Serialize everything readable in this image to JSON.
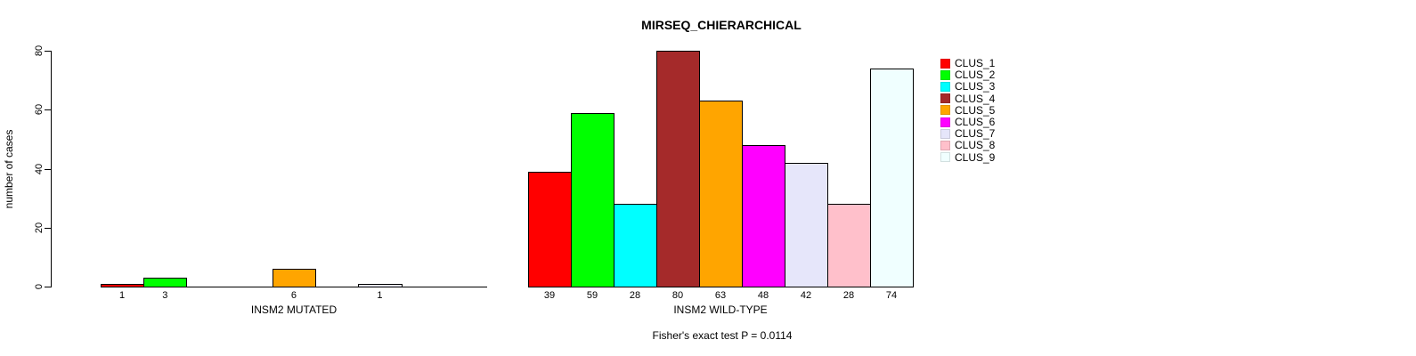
{
  "title": "MIRSEQ_CHIERARCHICAL",
  "chart_data": {
    "type": "bar",
    "title": "MIRSEQ_CHIERARCHICAL",
    "xlabel": "",
    "ylabel": "number of cases",
    "ylim": [
      0,
      80
    ],
    "yticks": [
      0,
      20,
      40,
      60,
      80
    ],
    "grid": false,
    "legend_position": "right",
    "categories": [
      "CLUS_1",
      "CLUS_2",
      "CLUS_3",
      "CLUS_4",
      "CLUS_5",
      "CLUS_6",
      "CLUS_7",
      "CLUS_8",
      "CLUS_9"
    ],
    "colors": [
      "#FF0000",
      "#00FF00",
      "#00FFFF",
      "#A52A2A",
      "#FFA500",
      "#FF00FF",
      "#E6E6FA",
      "#FFC0CB",
      "#F0FFFF"
    ],
    "series": [
      {
        "name": "INSM2 MUTATED",
        "values": [
          1,
          3,
          0,
          0,
          6,
          0,
          1,
          0,
          0
        ]
      },
      {
        "name": "INSM2 WILD-TYPE",
        "values": [
          39,
          59,
          28,
          80,
          63,
          48,
          42,
          28,
          74
        ]
      }
    ],
    "bar_value_labels_shown": true,
    "zero_bars_unlabeled": true,
    "footnote": "Fisher's exact test P = 0.0114"
  }
}
